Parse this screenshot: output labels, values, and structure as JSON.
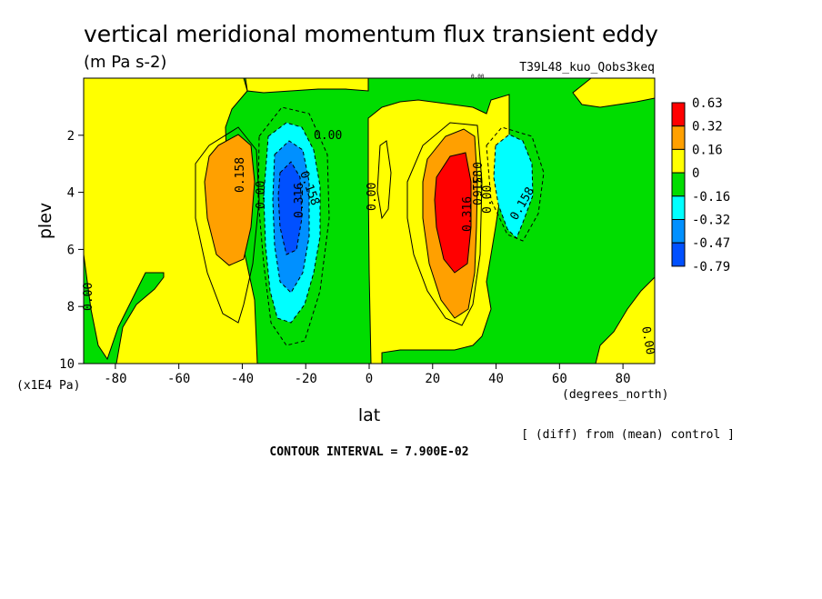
{
  "title": "vertical meridional momentum flux transient eddy",
  "units": "(m Pa s-2)",
  "run_label": "T39L48_kuo_Qobs3keq",
  "y_unit_note": "(x1E4 Pa)",
  "x_unit_note": "(degrees_north)",
  "diff_note": "[ (diff) from (mean) control ]",
  "contour_interval": "CONTOUR INTERVAL = 7.900E-02",
  "chart_data": {
    "type": "contour",
    "xlabel": "lat",
    "ylabel": "plev",
    "xlim": [
      -90,
      90
    ],
    "ylim": [
      0,
      10
    ],
    "y_inverted": true,
    "x_ticks": [
      "-80",
      "-60",
      "-40",
      "-20",
      "0",
      "20",
      "40",
      "60",
      "80"
    ],
    "y_ticks": [
      "2",
      "4",
      "6",
      "8",
      "10"
    ],
    "legend_placement": "right",
    "colorbar_levels": [
      "0.63",
      "0.32",
      "0.16",
      "0",
      "-0.16",
      "-0.32",
      "-0.47",
      "-0.79"
    ],
    "colorbar_colors": [
      "#ff0000",
      "#ffa000",
      "#ffff00",
      "#00dd00",
      "#00ffff",
      "#0090ff",
      "#0050ff"
    ],
    "contour_labels": [
      "0.00",
      "0.158",
      "0.00",
      "0.158",
      "0.316",
      "0.00",
      "0.316",
      "0.158",
      "0.00",
      "0.316",
      "0.00",
      "0.158",
      "0.00",
      "0.00"
    ],
    "features": [
      {
        "name": "southern positive max",
        "lat": -43,
        "plev": 3.5,
        "value": 0.2
      },
      {
        "name": "southern negative min",
        "lat": -27,
        "plev": 4.5,
        "value": -0.55
      },
      {
        "name": "northern positive max",
        "lat": 26,
        "plev": 4.5,
        "value": 0.62
      },
      {
        "name": "northern negative min",
        "lat": 43,
        "plev": 3.5,
        "value": -0.3
      }
    ]
  }
}
